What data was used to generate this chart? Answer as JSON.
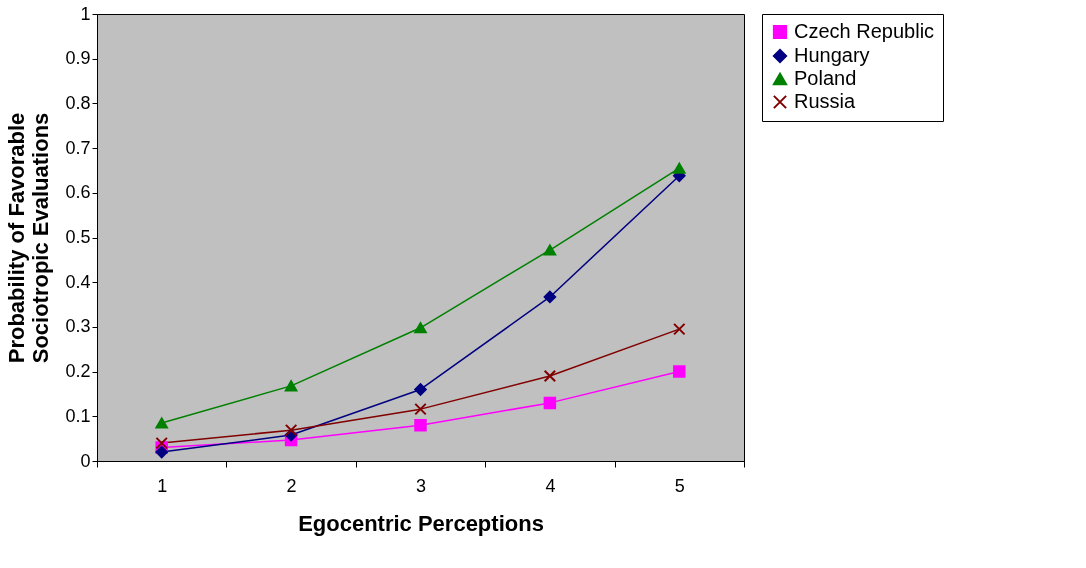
{
  "chart_data": {
    "type": "line",
    "xlabel": "Egocentric Perceptions",
    "ylabel": "Probability of Favorable\nSociotropic Evaluations",
    "categories": [
      "1",
      "2",
      "3",
      "4",
      "5"
    ],
    "ylim": [
      0,
      1
    ],
    "yticks": [
      0,
      0.1,
      0.2,
      0.3,
      0.4,
      0.5,
      0.6,
      0.7,
      0.8,
      0.9,
      1
    ],
    "grid": false,
    "legend": "right",
    "line_style": "solid",
    "series": [
      {
        "name": "Czech Republic",
        "color": "#ff00ff",
        "marker": "square",
        "values": [
          0.03,
          0.047,
          0.08,
          0.13,
          0.2
        ]
      },
      {
        "name": "Hungary",
        "color": "#000080",
        "marker": "diamond",
        "values": [
          0.02,
          0.058,
          0.16,
          0.367,
          0.638
        ]
      },
      {
        "name": "Poland",
        "color": "#008000",
        "marker": "triangle",
        "values": [
          0.085,
          0.168,
          0.298,
          0.472,
          0.655
        ]
      },
      {
        "name": "Russia",
        "color": "#800000",
        "marker": "cross",
        "values": [
          0.04,
          0.069,
          0.116,
          0.19,
          0.295
        ]
      }
    ]
  }
}
